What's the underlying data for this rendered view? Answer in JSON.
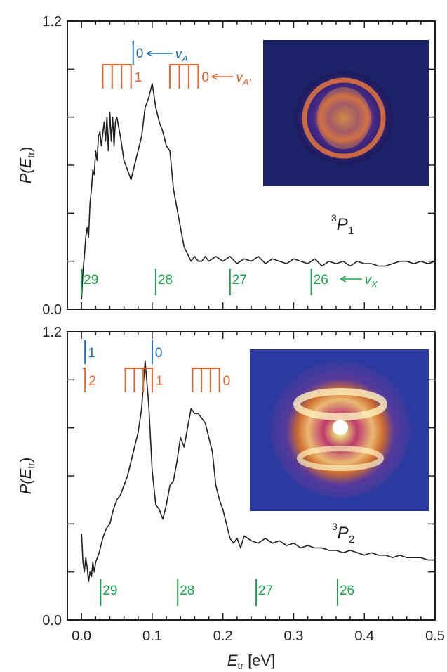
{
  "colors": {
    "axis": "#231f20",
    "curve": "#231f20",
    "blue": "#1f6bb0",
    "orange": "#e8612c",
    "green": "#1aa34a"
  },
  "shared_x_axis": {
    "label_main": "E",
    "label_sub": "tr",
    "label_unit": " [eV]",
    "range": [
      -0.02,
      0.5
    ],
    "ticks": [
      0.0,
      0.1,
      0.2,
      0.3,
      0.4,
      0.5
    ],
    "tick_labels": [
      "0.0",
      "0.1",
      "0.2",
      "0.3",
      "0.4",
      "0.5"
    ]
  },
  "chart_data": [
    {
      "type": "line",
      "panel": "top",
      "state_label": {
        "sup": "3",
        "main": "P",
        "sub": "1"
      },
      "ylabel": {
        "main": "P(E",
        "sub": "tr",
        "close": ")"
      },
      "ylim": [
        0.0,
        1.2
      ],
      "y_tick_labels": [
        {
          "value": 0.0,
          "label": "0.0"
        },
        {
          "value": 1.2,
          "label": "1.2"
        }
      ],
      "y_minor_ticks": [
        0.2,
        0.4,
        0.6,
        0.8,
        1.0
      ],
      "inset_image": "velocity-map-image-3P1",
      "series": [
        {
          "x": [
            0.0,
            0.002,
            0.004,
            0.006,
            0.008,
            0.01,
            0.012,
            0.014,
            0.016,
            0.018,
            0.02,
            0.022,
            0.024,
            0.026,
            0.028,
            0.03,
            0.032,
            0.034,
            0.036,
            0.038,
            0.04,
            0.042,
            0.044,
            0.046,
            0.048,
            0.05,
            0.055,
            0.06,
            0.065,
            0.07,
            0.075,
            0.08,
            0.085,
            0.09,
            0.095,
            0.1,
            0.105,
            0.11,
            0.115,
            0.12,
            0.125,
            0.13,
            0.135,
            0.14,
            0.145,
            0.15,
            0.155,
            0.16,
            0.165,
            0.17,
            0.175,
            0.18,
            0.19,
            0.2,
            0.21,
            0.22,
            0.23,
            0.24,
            0.25,
            0.26,
            0.27,
            0.28,
            0.29,
            0.3,
            0.31,
            0.32,
            0.33,
            0.34,
            0.35,
            0.36,
            0.37,
            0.38,
            0.39,
            0.4,
            0.41,
            0.42,
            0.43,
            0.44,
            0.45,
            0.46,
            0.47,
            0.48,
            0.49,
            0.5
          ],
          "y": [
            0.04,
            0.16,
            0.22,
            0.3,
            0.34,
            0.3,
            0.44,
            0.5,
            0.58,
            0.56,
            0.66,
            0.62,
            0.72,
            0.74,
            0.68,
            0.73,
            0.78,
            0.7,
            0.8,
            0.66,
            0.82,
            0.7,
            0.8,
            0.68,
            0.78,
            0.8,
            0.72,
            0.62,
            0.58,
            0.54,
            0.6,
            0.66,
            0.72,
            0.84,
            0.88,
            0.94,
            0.84,
            0.78,
            0.74,
            0.68,
            0.66,
            0.5,
            0.42,
            0.34,
            0.26,
            0.23,
            0.2,
            0.22,
            0.2,
            0.2,
            0.22,
            0.2,
            0.22,
            0.2,
            0.22,
            0.19,
            0.21,
            0.2,
            0.22,
            0.19,
            0.21,
            0.2,
            0.19,
            0.21,
            0.2,
            0.19,
            0.21,
            0.18,
            0.2,
            0.19,
            0.2,
            0.18,
            0.2,
            0.19,
            0.19,
            0.18,
            0.18,
            0.19,
            0.2,
            0.2,
            0.19,
            0.2,
            0.19,
            0.2
          ]
        }
      ],
      "annotations": {
        "blue": [
          {
            "x": 0.073,
            "label": "0",
            "arrow_label": "v",
            "arrow_sub": "A"
          }
        ],
        "orange": [
          {
            "x_start": 0.03,
            "x_end": 0.07,
            "label": "1"
          },
          {
            "x_start": 0.125,
            "x_end": 0.165,
            "label": "0",
            "arrow_label": "v",
            "arrow_sub": "A′"
          }
        ],
        "green": [
          {
            "x": 0.0,
            "label": "29"
          },
          {
            "x": 0.105,
            "label": "28"
          },
          {
            "x": 0.21,
            "label": "27"
          },
          {
            "x": 0.325,
            "label": "26",
            "arrow_label": "v",
            "arrow_sub": "X"
          }
        ]
      }
    },
    {
      "type": "line",
      "panel": "bottom",
      "state_label": {
        "sup": "3",
        "main": "P",
        "sub": "2"
      },
      "ylabel": {
        "main": "P(E",
        "sub": "tr",
        "close": ")"
      },
      "ylim": [
        0.0,
        1.2
      ],
      "y_tick_labels": [
        {
          "value": 0.0,
          "label": "0.0"
        },
        {
          "value": 1.2,
          "label": "1.2"
        }
      ],
      "y_minor_ticks": [
        0.2,
        0.4,
        0.6,
        0.8,
        1.0
      ],
      "inset_image": "velocity-map-image-3P2",
      "series": [
        {
          "x": [
            0.0,
            0.002,
            0.004,
            0.006,
            0.008,
            0.01,
            0.012,
            0.014,
            0.016,
            0.018,
            0.02,
            0.025,
            0.03,
            0.035,
            0.04,
            0.045,
            0.05,
            0.055,
            0.06,
            0.065,
            0.07,
            0.075,
            0.08,
            0.085,
            0.09,
            0.095,
            0.1,
            0.105,
            0.11,
            0.115,
            0.12,
            0.125,
            0.13,
            0.135,
            0.14,
            0.145,
            0.15,
            0.155,
            0.16,
            0.165,
            0.17,
            0.175,
            0.18,
            0.185,
            0.19,
            0.195,
            0.2,
            0.205,
            0.21,
            0.215,
            0.22,
            0.225,
            0.23,
            0.24,
            0.25,
            0.26,
            0.27,
            0.28,
            0.29,
            0.3,
            0.31,
            0.32,
            0.33,
            0.34,
            0.35,
            0.36,
            0.37,
            0.38,
            0.39,
            0.4,
            0.41,
            0.42,
            0.43,
            0.44,
            0.45,
            0.46,
            0.47,
            0.48,
            0.49,
            0.5
          ],
          "y": [
            0.36,
            0.24,
            0.2,
            0.26,
            0.22,
            0.16,
            0.2,
            0.18,
            0.24,
            0.2,
            0.24,
            0.28,
            0.34,
            0.38,
            0.4,
            0.46,
            0.5,
            0.52,
            0.56,
            0.6,
            0.66,
            0.72,
            0.78,
            0.88,
            1.08,
            0.9,
            0.62,
            0.48,
            0.46,
            0.42,
            0.48,
            0.56,
            0.58,
            0.66,
            0.76,
            0.72,
            0.8,
            0.88,
            0.86,
            0.86,
            0.84,
            0.82,
            0.76,
            0.7,
            0.56,
            0.5,
            0.46,
            0.4,
            0.34,
            0.32,
            0.34,
            0.3,
            0.35,
            0.33,
            0.32,
            0.34,
            0.32,
            0.33,
            0.31,
            0.32,
            0.3,
            0.31,
            0.3,
            0.3,
            0.29,
            0.29,
            0.28,
            0.29,
            0.28,
            0.27,
            0.28,
            0.27,
            0.27,
            0.26,
            0.27,
            0.26,
            0.26,
            0.26,
            0.25,
            0.25
          ]
        }
      ],
      "annotations": {
        "blue": [
          {
            "x": 0.005,
            "label": "1"
          },
          {
            "x": 0.1,
            "label": "0"
          }
        ],
        "orange": [
          {
            "x_start": 0.005,
            "x_end": 0.005,
            "label": "2"
          },
          {
            "x_start": 0.062,
            "x_end": 0.1,
            "label": "1"
          },
          {
            "x_start": 0.157,
            "x_end": 0.195,
            "label": "0"
          }
        ],
        "green": [
          {
            "x": 0.027,
            "label": "29"
          },
          {
            "x": 0.136,
            "label": "28"
          },
          {
            "x": 0.247,
            "label": "27"
          },
          {
            "x": 0.362,
            "label": "26"
          }
        ]
      }
    }
  ]
}
